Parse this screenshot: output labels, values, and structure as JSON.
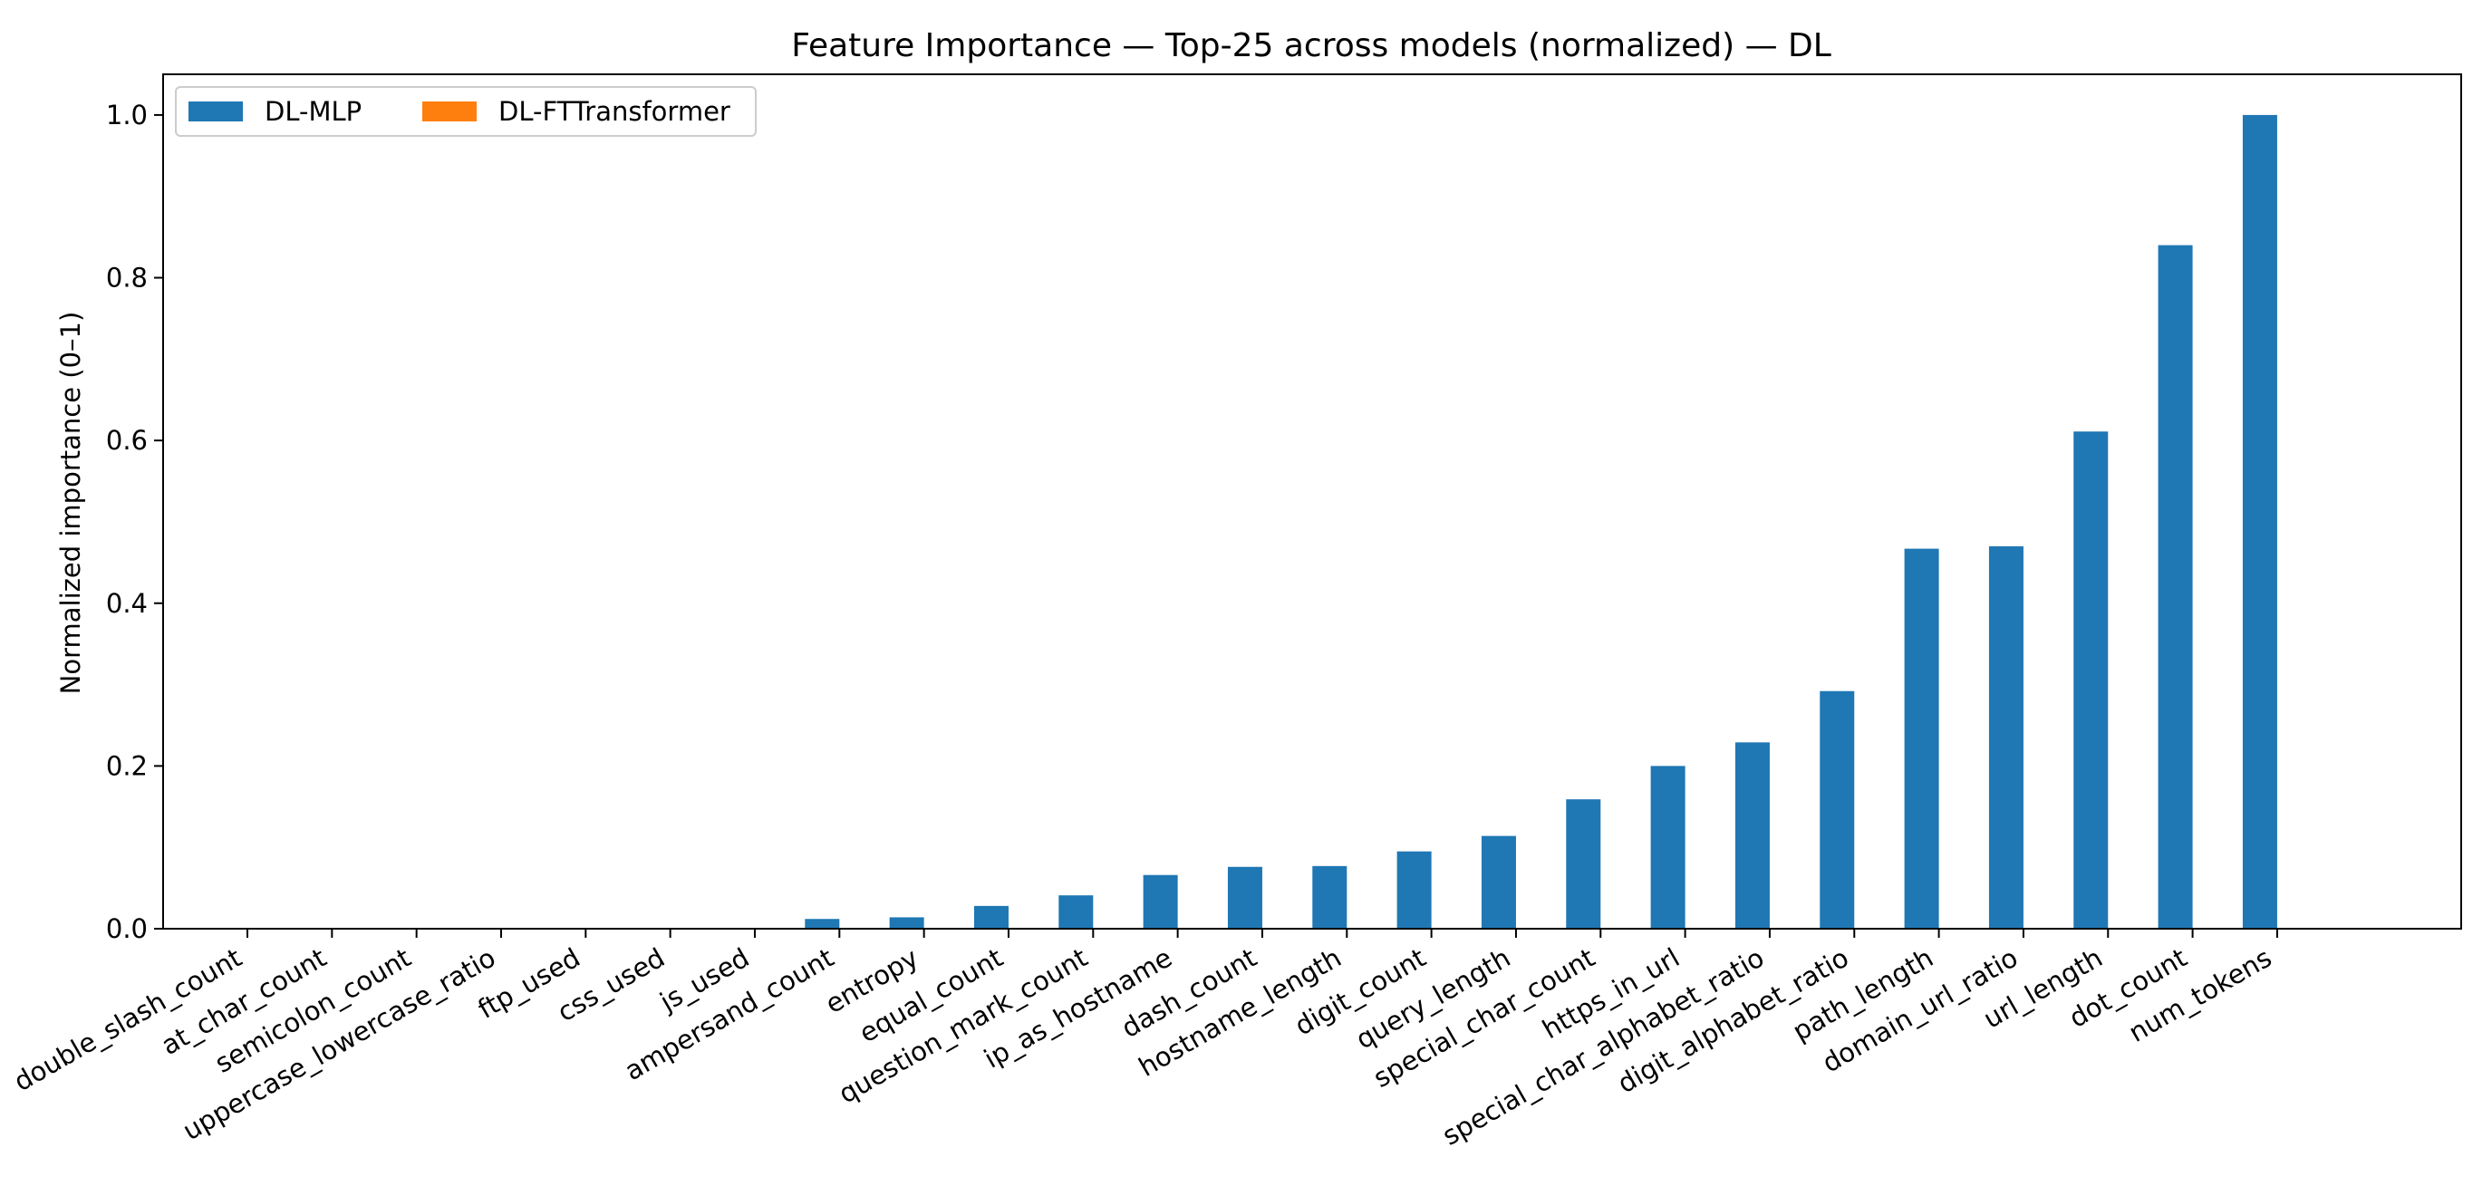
{
  "chart_data": {
    "type": "bar",
    "title": "Feature Importance — Top-25 across models (normalized) — DL",
    "xlabel": "",
    "ylabel": "Normalized importance (0–1)",
    "ylim": [
      0,
      1.05
    ],
    "yticks": [
      0.0,
      0.2,
      0.4,
      0.6,
      0.8,
      1.0
    ],
    "ytick_labels": [
      "0.0",
      "0.2",
      "0.4",
      "0.6",
      "0.8",
      "1.0"
    ],
    "grid": false,
    "legend": {
      "placement": "top-left",
      "columns": 2
    },
    "categories": [
      "double_slash_count",
      "at_char_count",
      "semicolon_count",
      "uppercase_lowercase_ratio",
      "ftp_used",
      "css_used",
      "js_used",
      "ampersand_count",
      "entropy",
      "equal_count",
      "question_mark_count",
      "ip_as_hostname",
      "dash_count",
      "hostname_length",
      "digit_count",
      "query_length",
      "special_char_count",
      "https_in_url",
      "special_char_alphabet_ratio",
      "digit_alphabet_ratio",
      "path_length",
      "domain_url_ratio",
      "url_length",
      "dot_count",
      "num_tokens"
    ],
    "series": [
      {
        "name": "DL-MLP",
        "color": "#1f77b4",
        "values": [
          0,
          0,
          0,
          0,
          0,
          0,
          0,
          0.012,
          0.014,
          0.028,
          0.041,
          0.066,
          0.076,
          0.077,
          0.095,
          0.114,
          0.159,
          0.2,
          0.229,
          0.292,
          0.467,
          0.47,
          0.611,
          0.84,
          1.0
        ]
      },
      {
        "name": "DL-FTTransformer",
        "color": "#ff7f0e",
        "values": [
          0,
          0,
          0,
          0,
          0,
          0,
          0,
          0,
          0,
          0,
          0,
          0,
          0,
          0,
          0,
          0,
          0,
          0,
          0,
          0,
          0,
          0,
          0,
          0,
          0
        ]
      }
    ]
  }
}
